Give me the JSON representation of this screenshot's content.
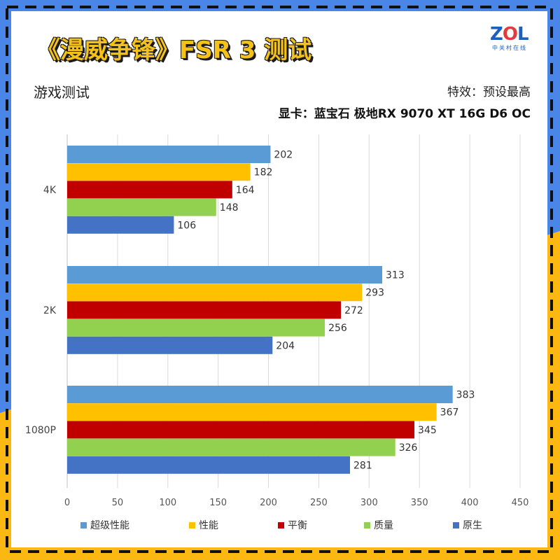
{
  "title": "《漫威争锋》FSR 3 测试",
  "subtitle": "游戏测试",
  "effect_label": "特效：预设最高",
  "gpu_label": "显卡：蓝宝石 极地RX 9070 XT 16G D6 OC",
  "logo": {
    "brand": "ZOL",
    "sub": "中关村在线"
  },
  "frame_colors": {
    "blue": "#4a86e8",
    "yellow": "#fbb812",
    "dash": "#111111"
  },
  "chart_data": {
    "type": "bar",
    "orientation": "horizontal",
    "categories": [
      "4K",
      "2K",
      "1080P"
    ],
    "series": [
      {
        "name": "超级性能",
        "color": "#5b9bd5",
        "values": [
          202,
          313,
          383
        ]
      },
      {
        "name": "性能",
        "color": "#ffc000",
        "values": [
          182,
          293,
          367
        ]
      },
      {
        "name": "平衡",
        "color": "#c00000",
        "values": [
          164,
          272,
          345
        ]
      },
      {
        "name": "质量",
        "color": "#92d050",
        "values": [
          148,
          256,
          326
        ]
      },
      {
        "name": "原生",
        "color": "#4472c4",
        "values": [
          106,
          204,
          281
        ]
      }
    ],
    "xlim": [
      0,
      450
    ],
    "xticks": [
      0,
      50,
      100,
      150,
      200,
      250,
      300,
      350,
      400,
      450
    ],
    "grid": "vertical",
    "data_labels": true,
    "legend_position": "bottom"
  }
}
